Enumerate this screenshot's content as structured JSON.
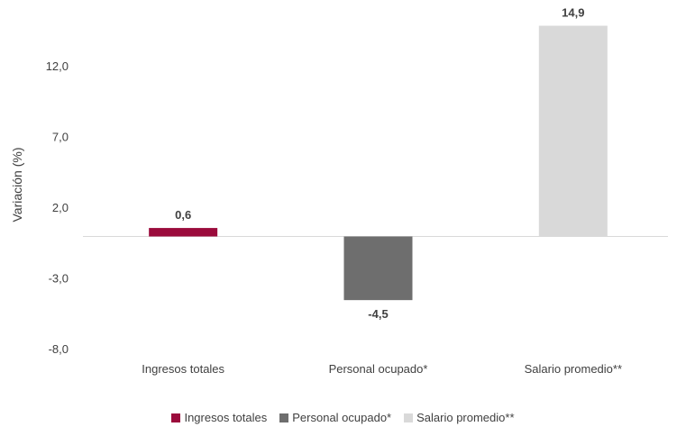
{
  "chart_data": {
    "type": "bar",
    "categories": [
      "Ingresos totales",
      "Personal ocupado*",
      "Salario promedio**"
    ],
    "values": [
      0.6,
      -4.5,
      14.9
    ],
    "value_labels": [
      "0,6",
      "-4,5",
      "14,9"
    ],
    "colors": [
      "#9B0B3C",
      "#6E6E6E",
      "#D9D9D9"
    ],
    "ylabel": "Variación (%)",
    "ylim": [
      -8.0,
      14.9
    ],
    "yticks": [
      12.0,
      7.0,
      2.0,
      -3.0,
      -8.0
    ],
    "ytick_labels": [
      "12,0",
      "7,0",
      "2,0",
      "-3,0",
      "-8,0"
    ],
    "grid": false,
    "legend_position": "bottom",
    "legend": [
      "Ingresos totales",
      "Personal ocupado*",
      "Salario promedio**"
    ]
  }
}
